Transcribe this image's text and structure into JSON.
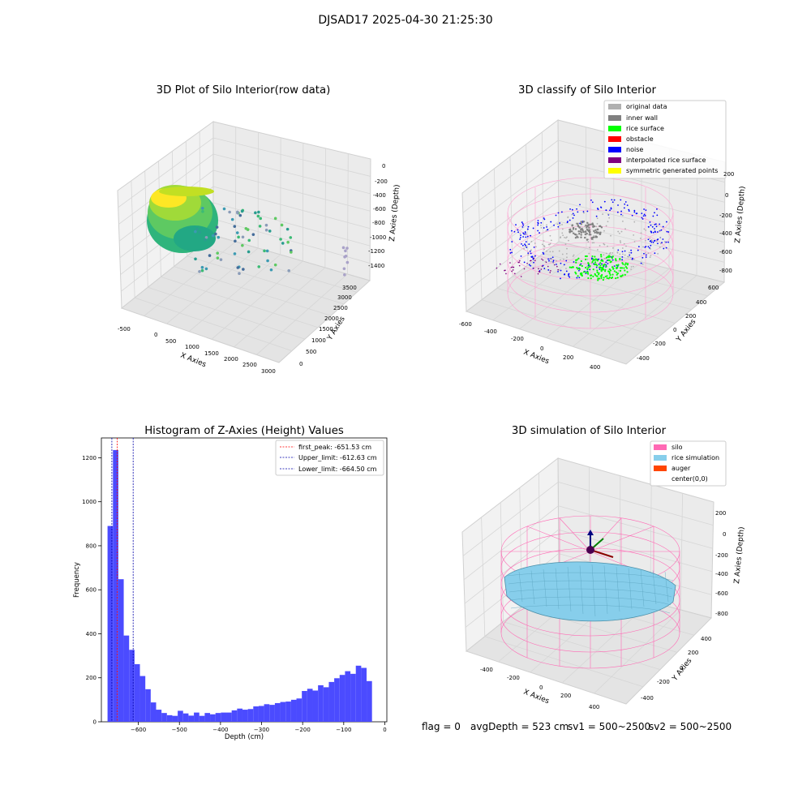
{
  "suptitle": "DJSAD17 2025-04-30 21:25:30",
  "status": {
    "flag": "flag = 0",
    "avg_depth": "avgDepth = 523 cm",
    "sv1": "sv1 = 500~2500",
    "sv2": "sv2 = 500~2500"
  },
  "colors": {
    "original": "#b0b0b0",
    "inner_wall": "#808080",
    "rice_surface": "#00ff00",
    "obstacle": "#ff0000",
    "noise": "#0000ff",
    "interpolated": "#800080",
    "symmetric": "#ffff00",
    "silo": "#ff69b4",
    "rice_sim": "#87ceeb",
    "auger": "#ff4500",
    "hist_bar": "#4b4bff"
  },
  "chart_data": [
    {
      "type": "scatter3d",
      "title": "3D Plot of Silo Interior(row data)",
      "xlabel": "X Axies",
      "ylabel": "Y Axies",
      "zlabel": "Z Axies (Depth)",
      "xticks": [
        "-500",
        "0",
        "500",
        "1000",
        "1500",
        "2000",
        "2500",
        "3000"
      ],
      "yticks": [
        "0",
        "500",
        "1000",
        "1500",
        "2000",
        "2500",
        "3000",
        "3500"
      ],
      "zticks": [
        "0",
        "-200",
        "-400",
        "-600",
        "-800",
        "-1000",
        "-1200",
        "-1400"
      ],
      "colormap": "viridis"
    },
    {
      "type": "scatter3d",
      "title": "3D classify of Silo Interior",
      "xlabel": "X Axies",
      "ylabel": "Y Axies",
      "zlabel": "Z Axies (Depth)",
      "xticks": [
        "-600",
        "-400",
        "-200",
        "0",
        "200",
        "400"
      ],
      "yticks": [
        "-400",
        "-200",
        "0",
        "200",
        "400",
        "600"
      ],
      "zticks": [
        "200",
        "0",
        "-200",
        "-400",
        "-600",
        "-800"
      ],
      "legend": [
        "original data",
        "inner wall",
        "rice surface",
        "obstacle",
        "noise",
        "interpolated rice surface",
        "symmetric generated points"
      ],
      "legend_position": "top-right"
    },
    {
      "type": "bar",
      "title": "Histogram of Z-Axies (Height) Values",
      "xlabel": "Depth (cm)",
      "ylabel": "Frequency",
      "xlim": [
        -690,
        5
      ],
      "ylim": [
        0,
        1290
      ],
      "xticks": [
        -600,
        -500,
        -400,
        -300,
        -200,
        -100,
        0
      ],
      "yticks": [
        0,
        200,
        400,
        600,
        800,
        1000,
        1200
      ],
      "bin_start": -675,
      "bin_width": 13.14,
      "counts": [
        890,
        1235,
        648,
        392,
        327,
        262,
        208,
        148,
        88,
        55,
        40,
        30,
        27,
        50,
        38,
        28,
        42,
        27,
        40,
        34,
        40,
        42,
        42,
        52,
        60,
        55,
        58,
        70,
        72,
        80,
        77,
        85,
        90,
        92,
        100,
        106,
        140,
        150,
        142,
        166,
        157,
        181,
        198,
        213,
        230,
        218,
        255,
        245,
        185
      ],
      "vlines": [
        {
          "label": "first_peak: -651.53 cm",
          "x": -651.53,
          "color": "#ff0000"
        },
        {
          "label": "Upper_limit: -612.63 cm",
          "x": -612.63,
          "color": "#0000aa"
        },
        {
          "label": "Lower_limit: -664.50 cm",
          "x": -664.5,
          "color": "#0000aa"
        }
      ],
      "legend_position": "top-right"
    },
    {
      "type": "surface3d",
      "title": "3D simulation of Silo Interior",
      "xlabel": "X Axies",
      "ylabel": "Y Axies",
      "zlabel": "Z Axies (Depth)",
      "xticks": [
        "-400",
        "-200",
        "0",
        "200",
        "400"
      ],
      "yticks": [
        "-400",
        "-200",
        "0",
        "200",
        "400"
      ],
      "zticks": [
        "200",
        "0",
        "-200",
        "-400",
        "-600",
        "-800"
      ],
      "legend": [
        "silo",
        "rice simulation",
        "auger",
        "center(0,0)"
      ],
      "legend_position": "top-right"
    }
  ]
}
